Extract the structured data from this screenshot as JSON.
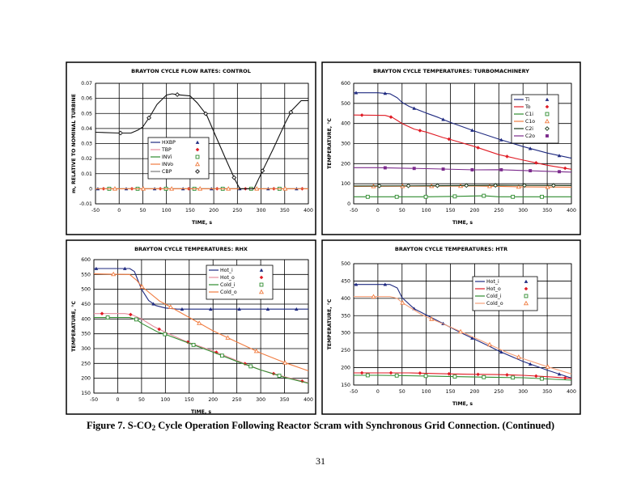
{
  "caption": {
    "prefix": "Figure 7. S-CO",
    "sub": "2",
    "suffix": " Cycle Operation Following Reactor Scram with Synchronous Grid Connection. (Continued)"
  },
  "page_number": "31",
  "chart_data": [
    {
      "type": "line",
      "title": "BRAYTON CYCLE FLOW RATES: CONTROL",
      "xlabel": "TIME, s",
      "ylabel": "m, RELATIVE TO NOMINAL TURBINE",
      "xlim": [
        -50,
        400
      ],
      "xticks": [
        -50,
        0,
        50,
        100,
        150,
        200,
        250,
        300,
        350,
        400
      ],
      "ylim": [
        -0.01,
        0.07
      ],
      "yticks": [
        -0.01,
        0,
        0.01,
        0.02,
        0.03,
        0.04,
        0.05,
        0.06,
        0.07
      ],
      "yticklabels": [
        "-0.01",
        "0",
        "0.01",
        "0.02",
        "0.03",
        "0.04",
        "0.05",
        "0.06",
        "0.07"
      ],
      "grid": true,
      "legend": "center-left",
      "series": [
        {
          "name": "HXBP",
          "color": "#1f2a80",
          "marker": "triangle-filled",
          "x": [
            -50,
            400
          ],
          "y": [
            0,
            0
          ]
        },
        {
          "name": "TBP",
          "color": "#e58c9c",
          "markerColor": "#e01b24",
          "marker": "diamond-filled",
          "x": [
            -50,
            400
          ],
          "y": [
            0,
            0
          ]
        },
        {
          "name": "INVi",
          "color": "#2e8b2e",
          "marker": "square-open",
          "x": [
            -50,
            400
          ],
          "y": [
            0,
            0
          ]
        },
        {
          "name": "INVo",
          "color": "#f07b3f",
          "marker": "triangle-open",
          "x": [
            -50,
            400
          ],
          "y": [
            0,
            0
          ]
        },
        {
          "name": "CBP",
          "color": "#111111",
          "legendColor": "#7a7a7a",
          "marker": "diamond-open",
          "x": [
            -50,
            0,
            25,
            40,
            50,
            65,
            80,
            100,
            112,
            125,
            150,
            165,
            185,
            200,
            225,
            245,
            255,
            285,
            300,
            325,
            350,
            365,
            385,
            400
          ],
          "y": [
            0.0375,
            0.037,
            0.037,
            0.039,
            0.041,
            0.048,
            0.056,
            0.0622,
            0.063,
            0.0624,
            0.0616,
            0.057,
            0.049,
            0.038,
            0.02,
            0.006,
            0,
            0,
            0.01,
            0.026,
            0.043,
            0.052,
            0.0585,
            0.0585
          ]
        }
      ]
    },
    {
      "type": "line",
      "title": "BRAYTON CYCLE TEMPERATURES: TURBOMACHINERY",
      "xlabel": "TIME, s",
      "ylabel": "TEMPERATURE, °C",
      "xlim": [
        -50,
        400
      ],
      "xticks": [
        -50,
        0,
        50,
        100,
        150,
        200,
        250,
        300,
        350,
        400
      ],
      "ylim": [
        0,
        600
      ],
      "yticks": [
        0,
        100,
        200,
        300,
        400,
        500,
        600
      ],
      "yticklabels": [
        "0",
        "100",
        "200",
        "300",
        "400",
        "500",
        "600"
      ],
      "grid": true,
      "legend": "top-right",
      "series": [
        {
          "name": "Ti",
          "color": "#1f2a80",
          "marker": "triangle-filled",
          "x": [
            -50,
            0,
            25,
            40,
            50,
            65,
            100,
            125,
            150,
            185,
            200,
            250,
            300,
            350,
            400
          ],
          "y": [
            553,
            553,
            548,
            528,
            505,
            485,
            452,
            430,
            405,
            375,
            362,
            322,
            285,
            253,
            227
          ]
        },
        {
          "name": "To",
          "color": "#e01b24",
          "marker": "diamond-filled",
          "x": [
            -50,
            15,
            30,
            40,
            50,
            75,
            100,
            135,
            150,
            200,
            250,
            300,
            350,
            400
          ],
          "y": [
            442,
            440,
            430,
            415,
            400,
            372,
            357,
            330,
            320,
            285,
            245,
            218,
            192,
            172
          ]
        },
        {
          "name": "C1i",
          "color": "#2e8b2e",
          "marker": "square-open",
          "x": [
            -50,
            100,
            160,
            220,
            250,
            400
          ],
          "y": [
            35,
            35,
            37,
            40,
            35,
            35
          ]
        },
        {
          "name": "C1o",
          "color": "#f07b3f",
          "marker": "triangle-open",
          "x": [
            -50,
            200,
            250,
            300,
            400
          ],
          "y": [
            87,
            89,
            87,
            84,
            83
          ]
        },
        {
          "name": "C2i",
          "color": "#1a3a1a",
          "marker": "diamond-open",
          "x": [
            -50,
            100,
            250,
            400
          ],
          "y": [
            89,
            90,
            92,
            91
          ]
        },
        {
          "name": "C2o",
          "color": "#7b2a8c",
          "marker": "square-filled",
          "x": [
            -50,
            0,
            100,
            200,
            250,
            300,
            400
          ],
          "y": [
            180,
            180,
            175,
            169,
            170,
            166,
            158
          ]
        }
      ]
    },
    {
      "type": "line",
      "title": "BRAYTON CYCLE TEMPERATURES: RHX",
      "xlabel": "TIME, s",
      "ylabel": "TEMPERATURE, °C",
      "xlim": [
        -50,
        400
      ],
      "xticks": [
        -50,
        0,
        50,
        100,
        150,
        200,
        250,
        300,
        350,
        400
      ],
      "ylim": [
        150,
        600
      ],
      "yticks": [
        150,
        200,
        250,
        300,
        350,
        400,
        450,
        500,
        550,
        600
      ],
      "yticklabels": [
        "150",
        "200",
        "250",
        "300",
        "350",
        "400",
        "450",
        "500",
        "550",
        "600"
      ],
      "grid": true,
      "legend": "top-right",
      "series": [
        {
          "name": "Hot_i",
          "color": "#1f2a80",
          "marker": "triangle-filled",
          "x": [
            -50,
            25,
            35,
            40,
            50,
            65,
            80,
            100,
            125,
            400
          ],
          "y": [
            570,
            570,
            560,
            540,
            500,
            462,
            445,
            437,
            433,
            433
          ]
        },
        {
          "name": "Hot_o",
          "color": "#e58c9c",
          "markerColor": "#e01b24",
          "marker": "diamond-filled",
          "x": [
            -50,
            15,
            30,
            50,
            75,
            100,
            135,
            150,
            200,
            250,
            300,
            350,
            400
          ],
          "y": [
            418,
            418,
            414,
            400,
            375,
            355,
            330,
            320,
            292,
            260,
            228,
            205,
            185
          ]
        },
        {
          "name": "Cold_i",
          "color": "#2e8b2e",
          "marker": "square-open",
          "x": [
            -50,
            25,
            40,
            50,
            85,
            100,
            150,
            200,
            250,
            300,
            350,
            400
          ],
          "y": [
            405,
            405,
            398,
            385,
            355,
            348,
            318,
            288,
            257,
            228,
            203,
            183
          ]
        },
        {
          "name": "Cold_o",
          "color": "#f07b3f",
          "marker": "triangle-open",
          "x": [
            -50,
            25,
            40,
            50,
            88,
            100,
            150,
            200,
            250,
            300,
            350,
            400
          ],
          "y": [
            552,
            550,
            530,
            510,
            460,
            450,
            405,
            360,
            322,
            285,
            253,
            225
          ]
        }
      ]
    },
    {
      "type": "line",
      "title": "BRAYTON CYCLE TEMPERATURES: HTR",
      "xlabel": "TIME, s",
      "ylabel": "TEMPERATURE, °C",
      "xlim": [
        -50,
        400
      ],
      "xticks": [
        -50,
        0,
        50,
        100,
        150,
        200,
        250,
        300,
        350,
        400
      ],
      "ylim": [
        150,
        500
      ],
      "yticks": [
        150,
        200,
        250,
        300,
        350,
        400,
        450,
        500
      ],
      "yticklabels": [
        "150",
        "200",
        "250",
        "300",
        "350",
        "400",
        "450",
        "500"
      ],
      "grid": true,
      "legend": "top-right",
      "series": [
        {
          "name": "Hot_i",
          "color": "#1f2a80",
          "marker": "triangle-filled",
          "x": [
            -50,
            25,
            40,
            50,
            75,
            110,
            170,
            230,
            250,
            300,
            350,
            400
          ],
          "y": [
            440,
            440,
            430,
            402,
            370,
            345,
            302,
            262,
            248,
            218,
            193,
            170
          ]
        },
        {
          "name": "Hot_o",
          "color": "#e01b24",
          "marker": "diamond-filled",
          "x": [
            -50,
            64,
            125,
            185,
            245,
            300,
            360,
            400
          ],
          "y": [
            185,
            185,
            183,
            181,
            180,
            178,
            173,
            169
          ]
        },
        {
          "name": "Cold_i",
          "color": "#2e8b2e",
          "marker": "square-open",
          "x": [
            -50,
            0,
            100,
            200,
            250,
            300,
            400
          ],
          "y": [
            178,
            178,
            176,
            173,
            172,
            171,
            164
          ]
        },
        {
          "name": "Cold_o",
          "color": "#f5a07a",
          "markerColor": "#f07b3f",
          "marker": "triangle-open",
          "x": [
            -50,
            25,
            40,
            50,
            88,
            100,
            150,
            210,
            270,
            300,
            350,
            400
          ],
          "y": [
            405,
            405,
            400,
            388,
            355,
            347,
            317,
            280,
            242,
            226,
            203,
            182
          ]
        }
      ]
    }
  ]
}
